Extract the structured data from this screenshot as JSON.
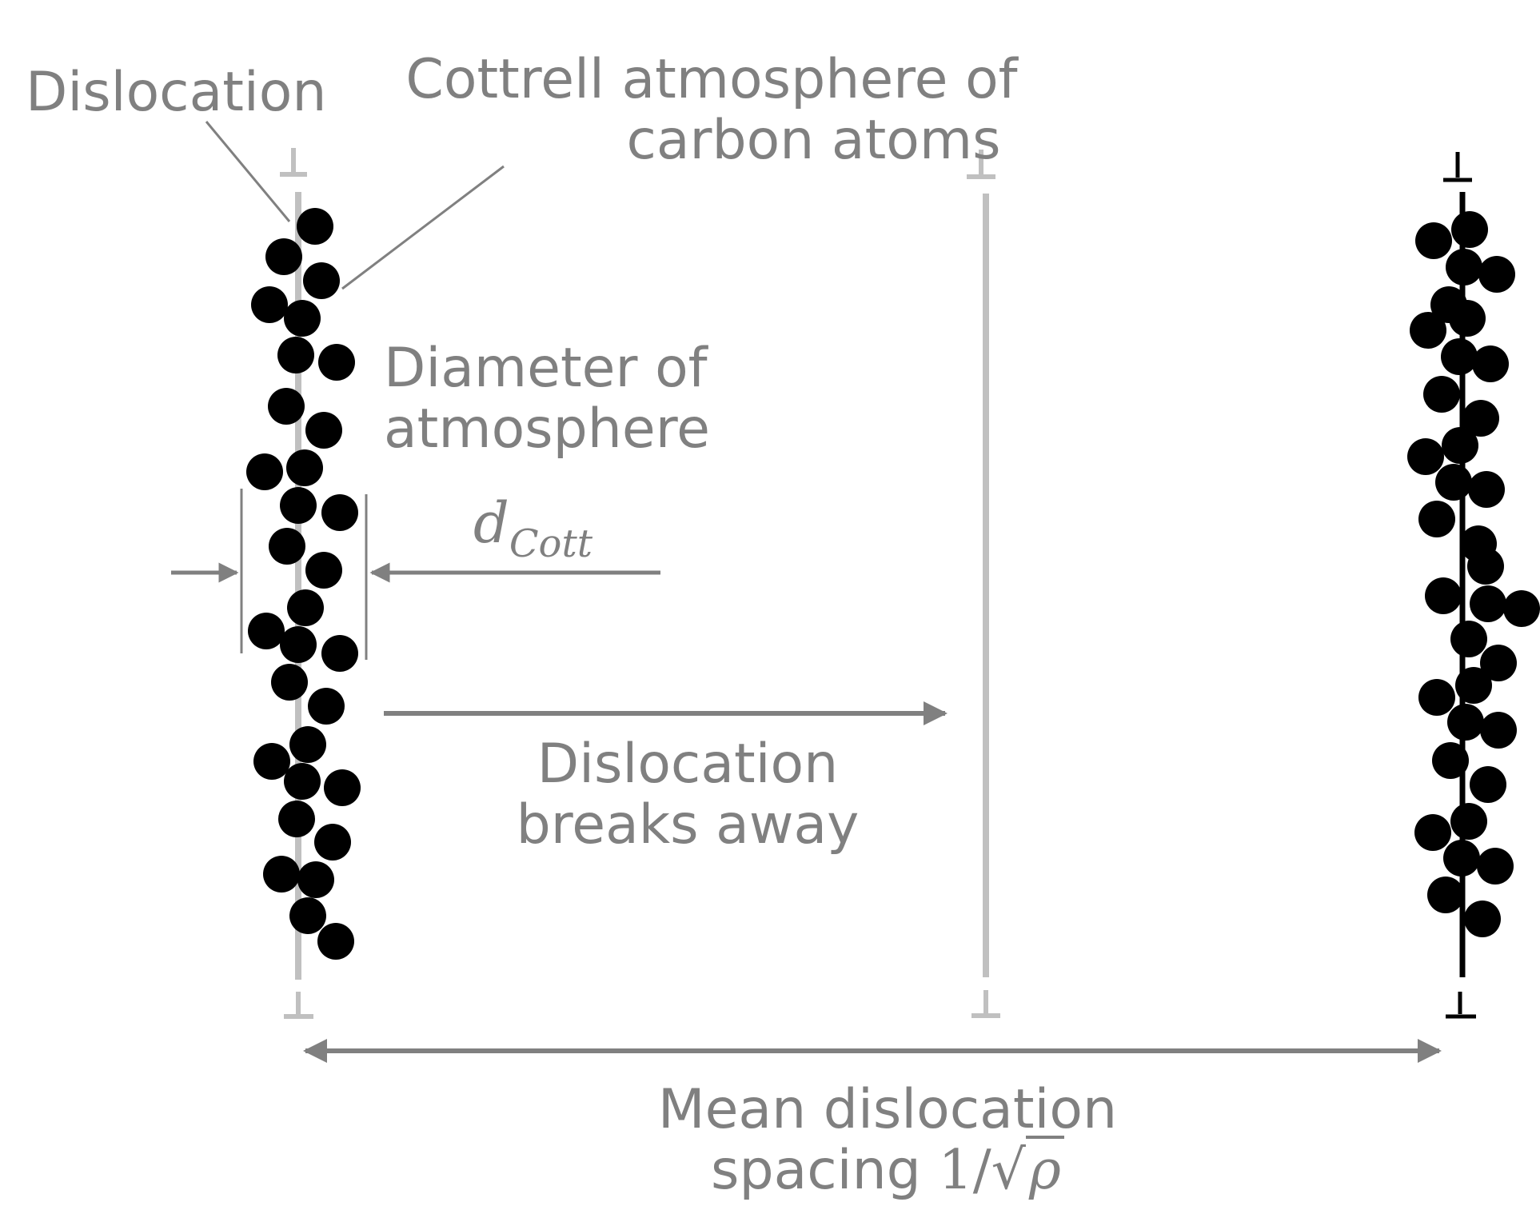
{
  "labels": {
    "dislocation": "Dislocation",
    "cottrell_line1": "Cottrell atmosphere of",
    "cottrell_line2": "carbon atoms",
    "diameter_line1": "Diameter of",
    "diameter_line2": "atmosphere",
    "d_symbol": "d",
    "d_subscript": "Cott",
    "breaks_line1": "Dislocation",
    "breaks_line2": "breaks away",
    "spacing_line1": "Mean dislocation",
    "spacing_line2_text": "spacing ",
    "spacing_numerator": "1/",
    "spacing_sqrt": "√",
    "spacing_rho": "ρ"
  },
  "symbols": {
    "dislocation_symbol": "⊥"
  },
  "colors": {
    "text": "#808080",
    "arrow": "#808080",
    "pinned_line": "#c0c0c0",
    "free_line": "#c0c0c0",
    "right_line": "#000000",
    "atoms": "#000000",
    "background": "#ffffff"
  }
}
